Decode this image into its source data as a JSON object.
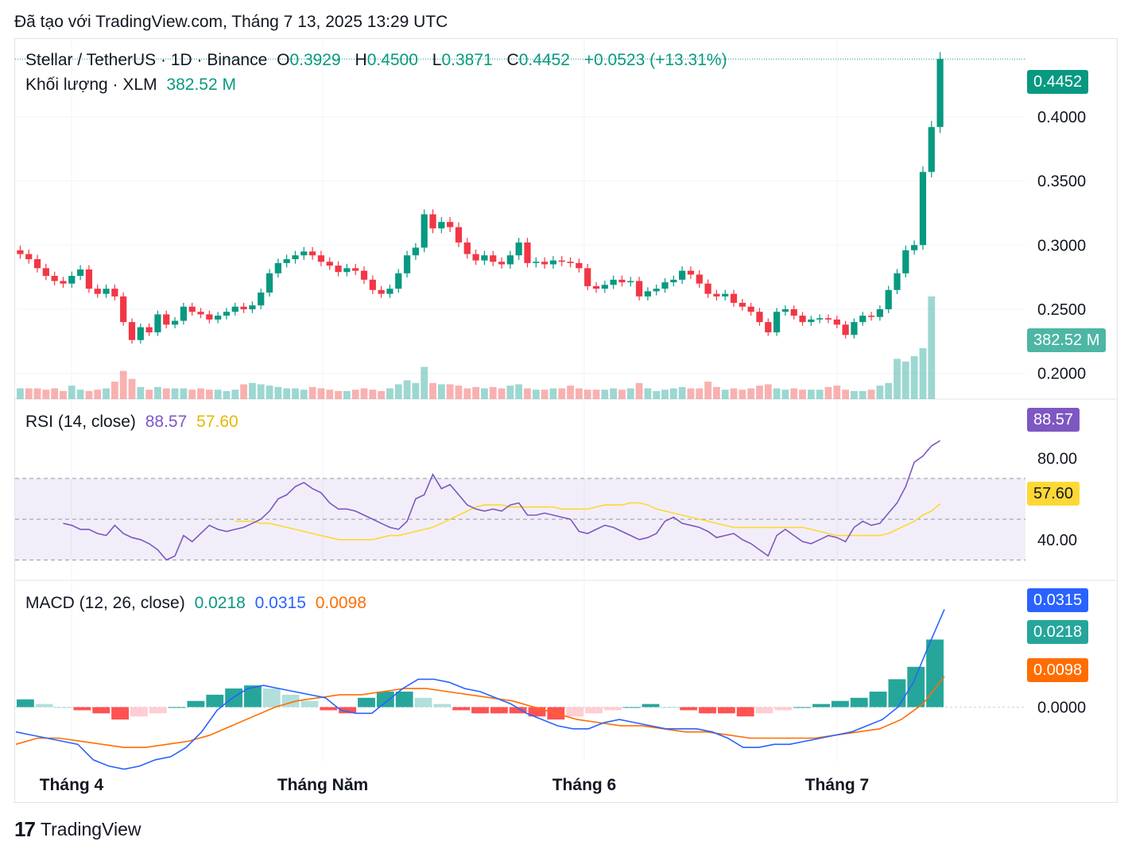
{
  "header": {
    "created_with": "Đã tạo với TradingView.com, Tháng 7 13, 2025 13:29 UTC"
  },
  "legend": {
    "symbol": "Stellar / TetherUS · 1D · Binance",
    "o_label": "O",
    "o_value": "0.3929",
    "h_label": "H",
    "h_value": "0.4500",
    "l_label": "L",
    "l_value": "0.3871",
    "c_label": "C",
    "c_value": "0.4452",
    "change": "+0.0523 (+13.31%)",
    "volume_label": "Khối lượng · XLM",
    "volume_value": "382.52 M",
    "rsi_label": "RSI (14, close)",
    "rsi_value": "88.57",
    "rsi_ma_value": "57.60",
    "macd_label": "MACD (12, 26, close)",
    "macd_hist": "0.0218",
    "macd_line": "0.0315",
    "macd_signal": "0.0098"
  },
  "price_axis": [
    "0.4000",
    "0.3500",
    "0.3000",
    "0.2500",
    "0.2000"
  ],
  "rsi_axis": [
    "80.00",
    "40.00"
  ],
  "macd_axis": [
    "0.0000"
  ],
  "badges": {
    "price": "0.4452",
    "volume": "382.52 M",
    "rsi": "88.57",
    "rsi_ma": "57.60",
    "macd_line": "0.0315",
    "macd_hist": "0.0218",
    "macd_signal": "0.0098"
  },
  "x_labels": [
    "Tháng 4",
    "Tháng Năm",
    "Tháng 6",
    "Tháng 7"
  ],
  "footer": {
    "brand": "TradingView",
    "logo": "17"
  },
  "colors": {
    "up": "#089981",
    "down": "#f23645",
    "rsi": "#7e57c2",
    "rsi_ma": "#fdd835",
    "macd": "#2962ff",
    "signal": "#ff6d00"
  },
  "chart_data": {
    "type": "candlestick",
    "title": "Stellar / TetherUS · 1D · Binance",
    "ylim": [
      0.18,
      0.46
    ],
    "candles_close": [
      0.293,
      0.289,
      0.282,
      0.276,
      0.272,
      0.27,
      0.276,
      0.281,
      0.266,
      0.262,
      0.266,
      0.26,
      0.24,
      0.226,
      0.236,
      0.232,
      0.246,
      0.238,
      0.241,
      0.252,
      0.248,
      0.246,
      0.242,
      0.245,
      0.248,
      0.252,
      0.25,
      0.253,
      0.263,
      0.278,
      0.286,
      0.289,
      0.292,
      0.295,
      0.292,
      0.287,
      0.284,
      0.279,
      0.282,
      0.28,
      0.273,
      0.265,
      0.262,
      0.266,
      0.278,
      0.292,
      0.298,
      0.324,
      0.313,
      0.318,
      0.314,
      0.302,
      0.293,
      0.288,
      0.292,
      0.287,
      0.285,
      0.292,
      0.302,
      0.286,
      0.287,
      0.285,
      0.288,
      0.287,
      0.286,
      0.282,
      0.268,
      0.266,
      0.269,
      0.273,
      0.271,
      0.272,
      0.26,
      0.264,
      0.266,
      0.271,
      0.273,
      0.28,
      0.277,
      0.27,
      0.262,
      0.26,
      0.262,
      0.255,
      0.252,
      0.248,
      0.24,
      0.232,
      0.248,
      0.25,
      0.245,
      0.24,
      0.242,
      0.243,
      0.242,
      0.238,
      0.23,
      0.24,
      0.245,
      0.244,
      0.25,
      0.265,
      0.278,
      0.296,
      0.3,
      0.357,
      0.392,
      0.445
    ],
    "volume_million": [
      40,
      40,
      40,
      35,
      40,
      30,
      50,
      35,
      30,
      35,
      40,
      65,
      105,
      75,
      45,
      35,
      45,
      40,
      40,
      40,
      35,
      40,
      35,
      35,
      30,
      35,
      55,
      60,
      55,
      50,
      45,
      40,
      40,
      35,
      45,
      40,
      35,
      30,
      30,
      35,
      40,
      35,
      30,
      40,
      55,
      70,
      60,
      120,
      60,
      55,
      55,
      50,
      40,
      45,
      40,
      45,
      40,
      50,
      55,
      40,
      35,
      35,
      40,
      40,
      50,
      40,
      35,
      35,
      35,
      40,
      35,
      40,
      60,
      40,
      30,
      35,
      40,
      45,
      40,
      40,
      65,
      45,
      35,
      40,
      35,
      40,
      50,
      55,
      40,
      35,
      40,
      35,
      35,
      35,
      45,
      50,
      35,
      30,
      30,
      35,
      50,
      60,
      150,
      140,
      160,
      190,
      382.52
    ],
    "rsi": [
      48,
      47,
      45,
      45,
      43,
      42,
      47,
      43,
      41,
      40,
      38,
      35,
      30,
      32,
      42,
      39,
      43,
      47,
      45,
      44,
      45,
      46,
      48,
      50,
      54,
      60,
      62,
      66,
      68,
      65,
      63,
      58,
      55,
      55,
      54,
      52,
      50,
      48,
      46,
      45,
      49,
      60,
      62,
      72,
      65,
      67,
      62,
      57,
      55,
      54,
      55,
      54,
      57,
      58,
      52,
      52,
      53,
      52,
      51,
      50,
      44,
      43,
      45,
      47,
      46,
      44,
      42,
      40,
      41,
      43,
      49,
      51,
      48,
      47,
      46,
      44,
      41,
      42,
      43,
      40,
      38,
      35,
      32,
      42,
      45,
      42,
      39,
      38,
      40,
      42,
      41,
      39,
      46,
      49,
      47,
      48,
      53,
      58,
      66,
      78,
      81,
      86,
      88.57
    ],
    "rsi_ma": [
      49,
      49,
      49,
      48,
      48,
      47,
      46,
      45,
      44,
      43,
      42,
      41,
      40,
      40,
      40,
      40,
      40,
      41,
      42,
      42,
      43,
      44,
      45,
      46,
      48,
      50,
      52,
      54,
      56,
      57,
      57,
      57,
      56,
      56,
      56,
      56,
      56,
      56,
      55,
      55,
      55,
      55,
      56,
      57,
      57,
      57,
      58,
      58,
      57,
      55,
      54,
      53,
      52,
      51,
      50,
      49,
      48,
      47,
      46,
      46,
      46,
      46,
      46,
      46,
      46,
      46,
      46,
      45,
      44,
      43,
      42,
      42,
      42,
      42,
      42,
      42,
      43,
      45,
      47,
      49,
      52,
      54,
      57.6
    ],
    "macd_line": [
      -0.008,
      -0.009,
      -0.01,
      -0.011,
      -0.012,
      -0.017,
      -0.019,
      -0.02,
      -0.019,
      -0.017,
      -0.016,
      -0.013,
      -0.008,
      -0.001,
      0.003,
      0.006,
      0.007,
      0.006,
      0.005,
      0.004,
      0.003,
      -0.001,
      -0.002,
      -0.002,
      0.002,
      0.006,
      0.009,
      0.009,
      0.008,
      0.006,
      0.005,
      0.003,
      0.001,
      -0.002,
      -0.004,
      -0.006,
      -0.007,
      -0.007,
      -0.005,
      -0.004,
      -0.005,
      -0.006,
      -0.007,
      -0.007,
      -0.007,
      -0.008,
      -0.01,
      -0.013,
      -0.013,
      -0.012,
      -0.012,
      -0.011,
      -0.01,
      -0.009,
      -0.008,
      -0.006,
      -0.004,
      0.0,
      0.008,
      0.02,
      0.0315
    ],
    "macd_signal": [
      -0.012,
      -0.01,
      -0.01,
      -0.011,
      -0.012,
      -0.013,
      -0.013,
      -0.012,
      -0.011,
      -0.009,
      -0.006,
      -0.003,
      0.0,
      0.002,
      0.003,
      0.004,
      0.004,
      0.005,
      0.006,
      0.006,
      0.005,
      0.004,
      0.003,
      0.002,
      0.0,
      -0.002,
      -0.004,
      -0.005,
      -0.006,
      -0.006,
      -0.007,
      -0.008,
      -0.008,
      -0.009,
      -0.01,
      -0.01,
      -0.01,
      -0.01,
      -0.009,
      -0.008,
      -0.007,
      -0.004,
      0.001,
      0.0098
    ],
    "macd_hist": [
      0.0025,
      0.001,
      0.0,
      -0.001,
      -0.002,
      -0.004,
      -0.003,
      -0.002,
      0.0,
      0.002,
      0.004,
      0.006,
      0.007,
      0.006,
      0.004,
      0.002,
      -0.001,
      -0.002,
      0.003,
      0.005,
      0.005,
      0.003,
      0.001,
      -0.001,
      -0.002,
      -0.002,
      -0.002,
      -0.003,
      -0.004,
      -0.003,
      -0.002,
      -0.001,
      0.0,
      0.001,
      0.0,
      -0.001,
      -0.002,
      -0.002,
      -0.003,
      -0.002,
      -0.001,
      0.0,
      0.001,
      0.002,
      0.003,
      0.005,
      0.009,
      0.013,
      0.0218
    ],
    "macd_ylim": [
      -0.015,
      0.035
    ]
  }
}
